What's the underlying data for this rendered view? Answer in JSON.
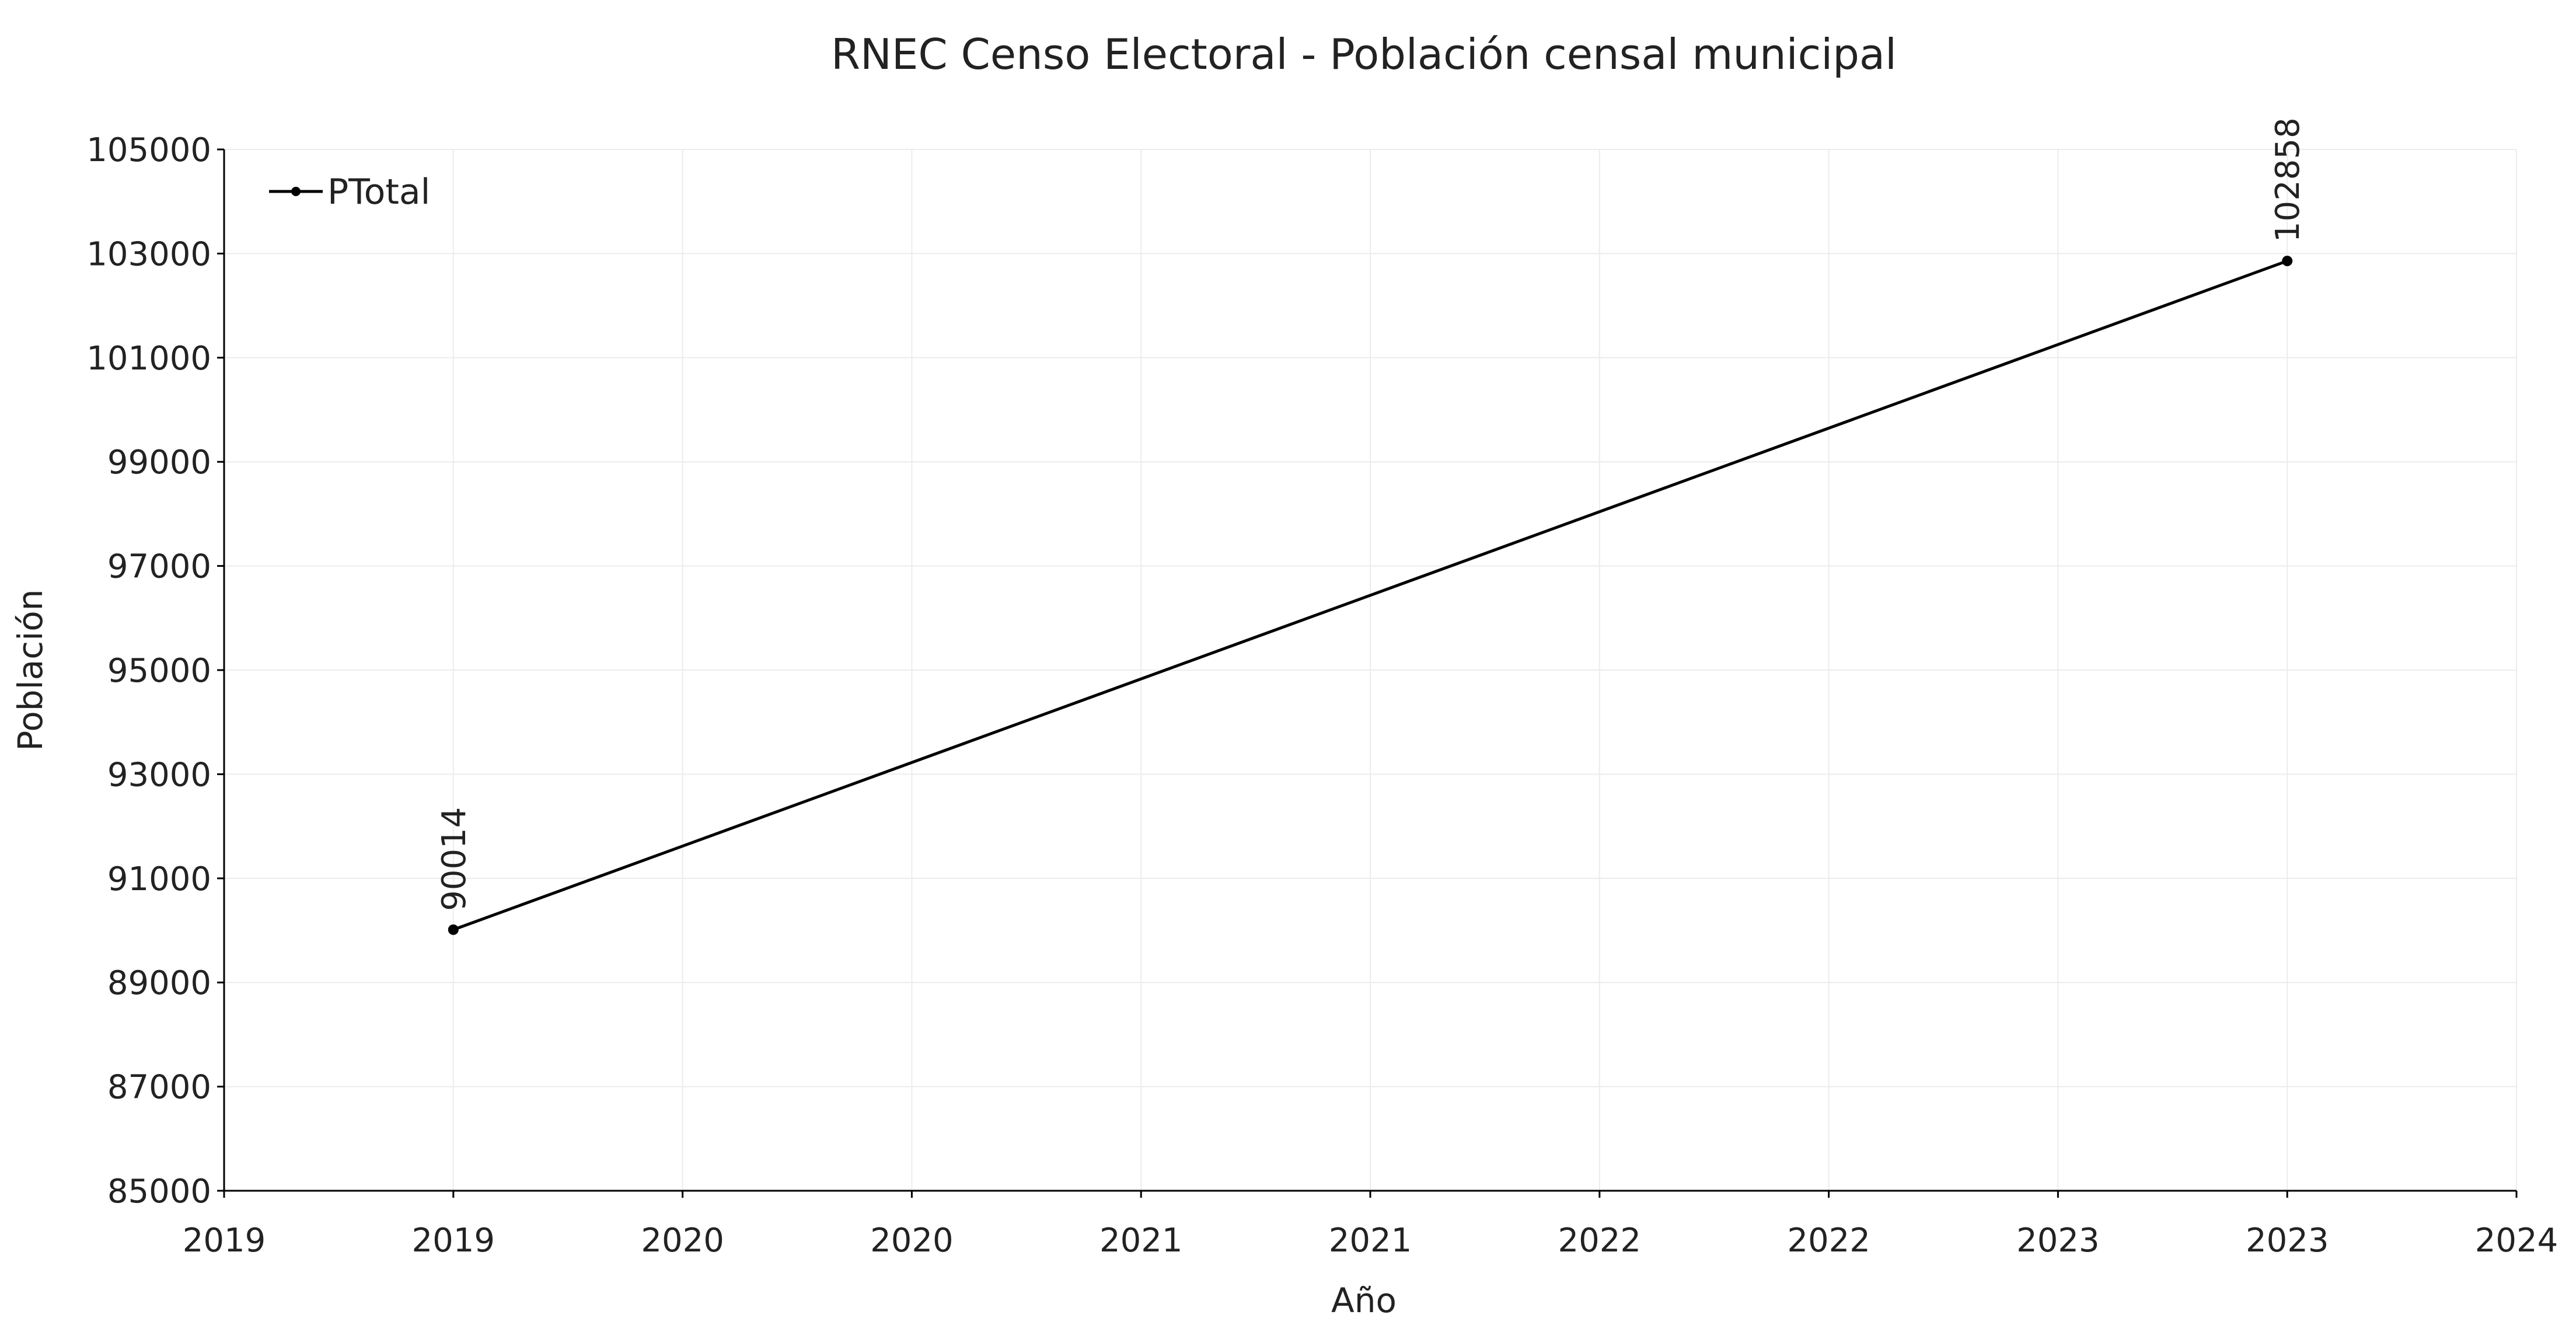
{
  "chart_data": {
    "type": "line",
    "title": "RNEC Censo Electoral - Población censal municipal",
    "xlabel": "Año",
    "ylabel": "Población",
    "x_ticks": [
      "2019",
      "2019",
      "2020",
      "2020",
      "2021",
      "2021",
      "2022",
      "2022",
      "2023",
      "2023",
      "2024"
    ],
    "y_ticks": [
      "85000",
      "87000",
      "89000",
      "91000",
      "93000",
      "95000",
      "97000",
      "99000",
      "101000",
      "103000",
      "105000"
    ],
    "ylim": [
      85000,
      105000
    ],
    "grid": true,
    "legend_position": "top-left",
    "series": [
      {
        "name": "PTotal",
        "color": "#000000",
        "points": [
          {
            "x": "2019",
            "y": 90014,
            "label": "90014"
          },
          {
            "x": "2023",
            "y": 102858,
            "label": "102858"
          }
        ]
      }
    ]
  }
}
